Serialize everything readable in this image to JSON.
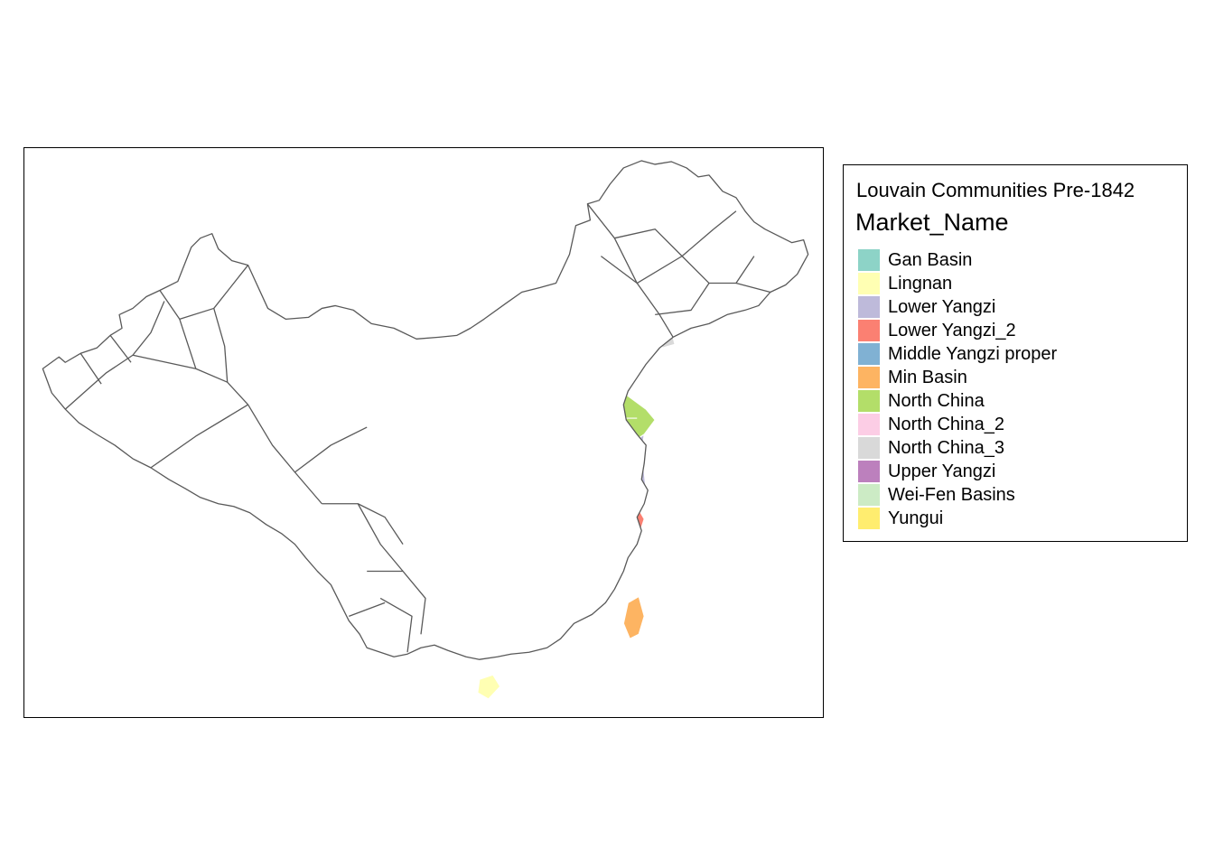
{
  "legend": {
    "title": "Louvain Communities Pre-1842",
    "subtitle": "Market_Name",
    "items": [
      {
        "label": "Gan Basin",
        "color": "#8DD3C7"
      },
      {
        "label": "Lingnan",
        "color": "#FFFFB3"
      },
      {
        "label": "Lower Yangzi",
        "color": "#BEBADA"
      },
      {
        "label": "Lower Yangzi_2",
        "color": "#FB8072"
      },
      {
        "label": "Middle Yangzi proper",
        "color": "#80B1D3"
      },
      {
        "label": "Min Basin",
        "color": "#FDB462"
      },
      {
        "label": "North China",
        "color": "#B3DE69"
      },
      {
        "label": "North China_2",
        "color": "#FCCDE5"
      },
      {
        "label": "North China_3",
        "color": "#D9D9D9"
      },
      {
        "label": "Upper Yangzi",
        "color": "#BC80BD"
      },
      {
        "label": "Wei-Fen Basins",
        "color": "#CCEBC5"
      },
      {
        "label": "Yungui",
        "color": "#FFED6F"
      }
    ]
  },
  "map": {
    "outline_color": "#595959",
    "unassigned_fill": "#FFFFFF"
  }
}
